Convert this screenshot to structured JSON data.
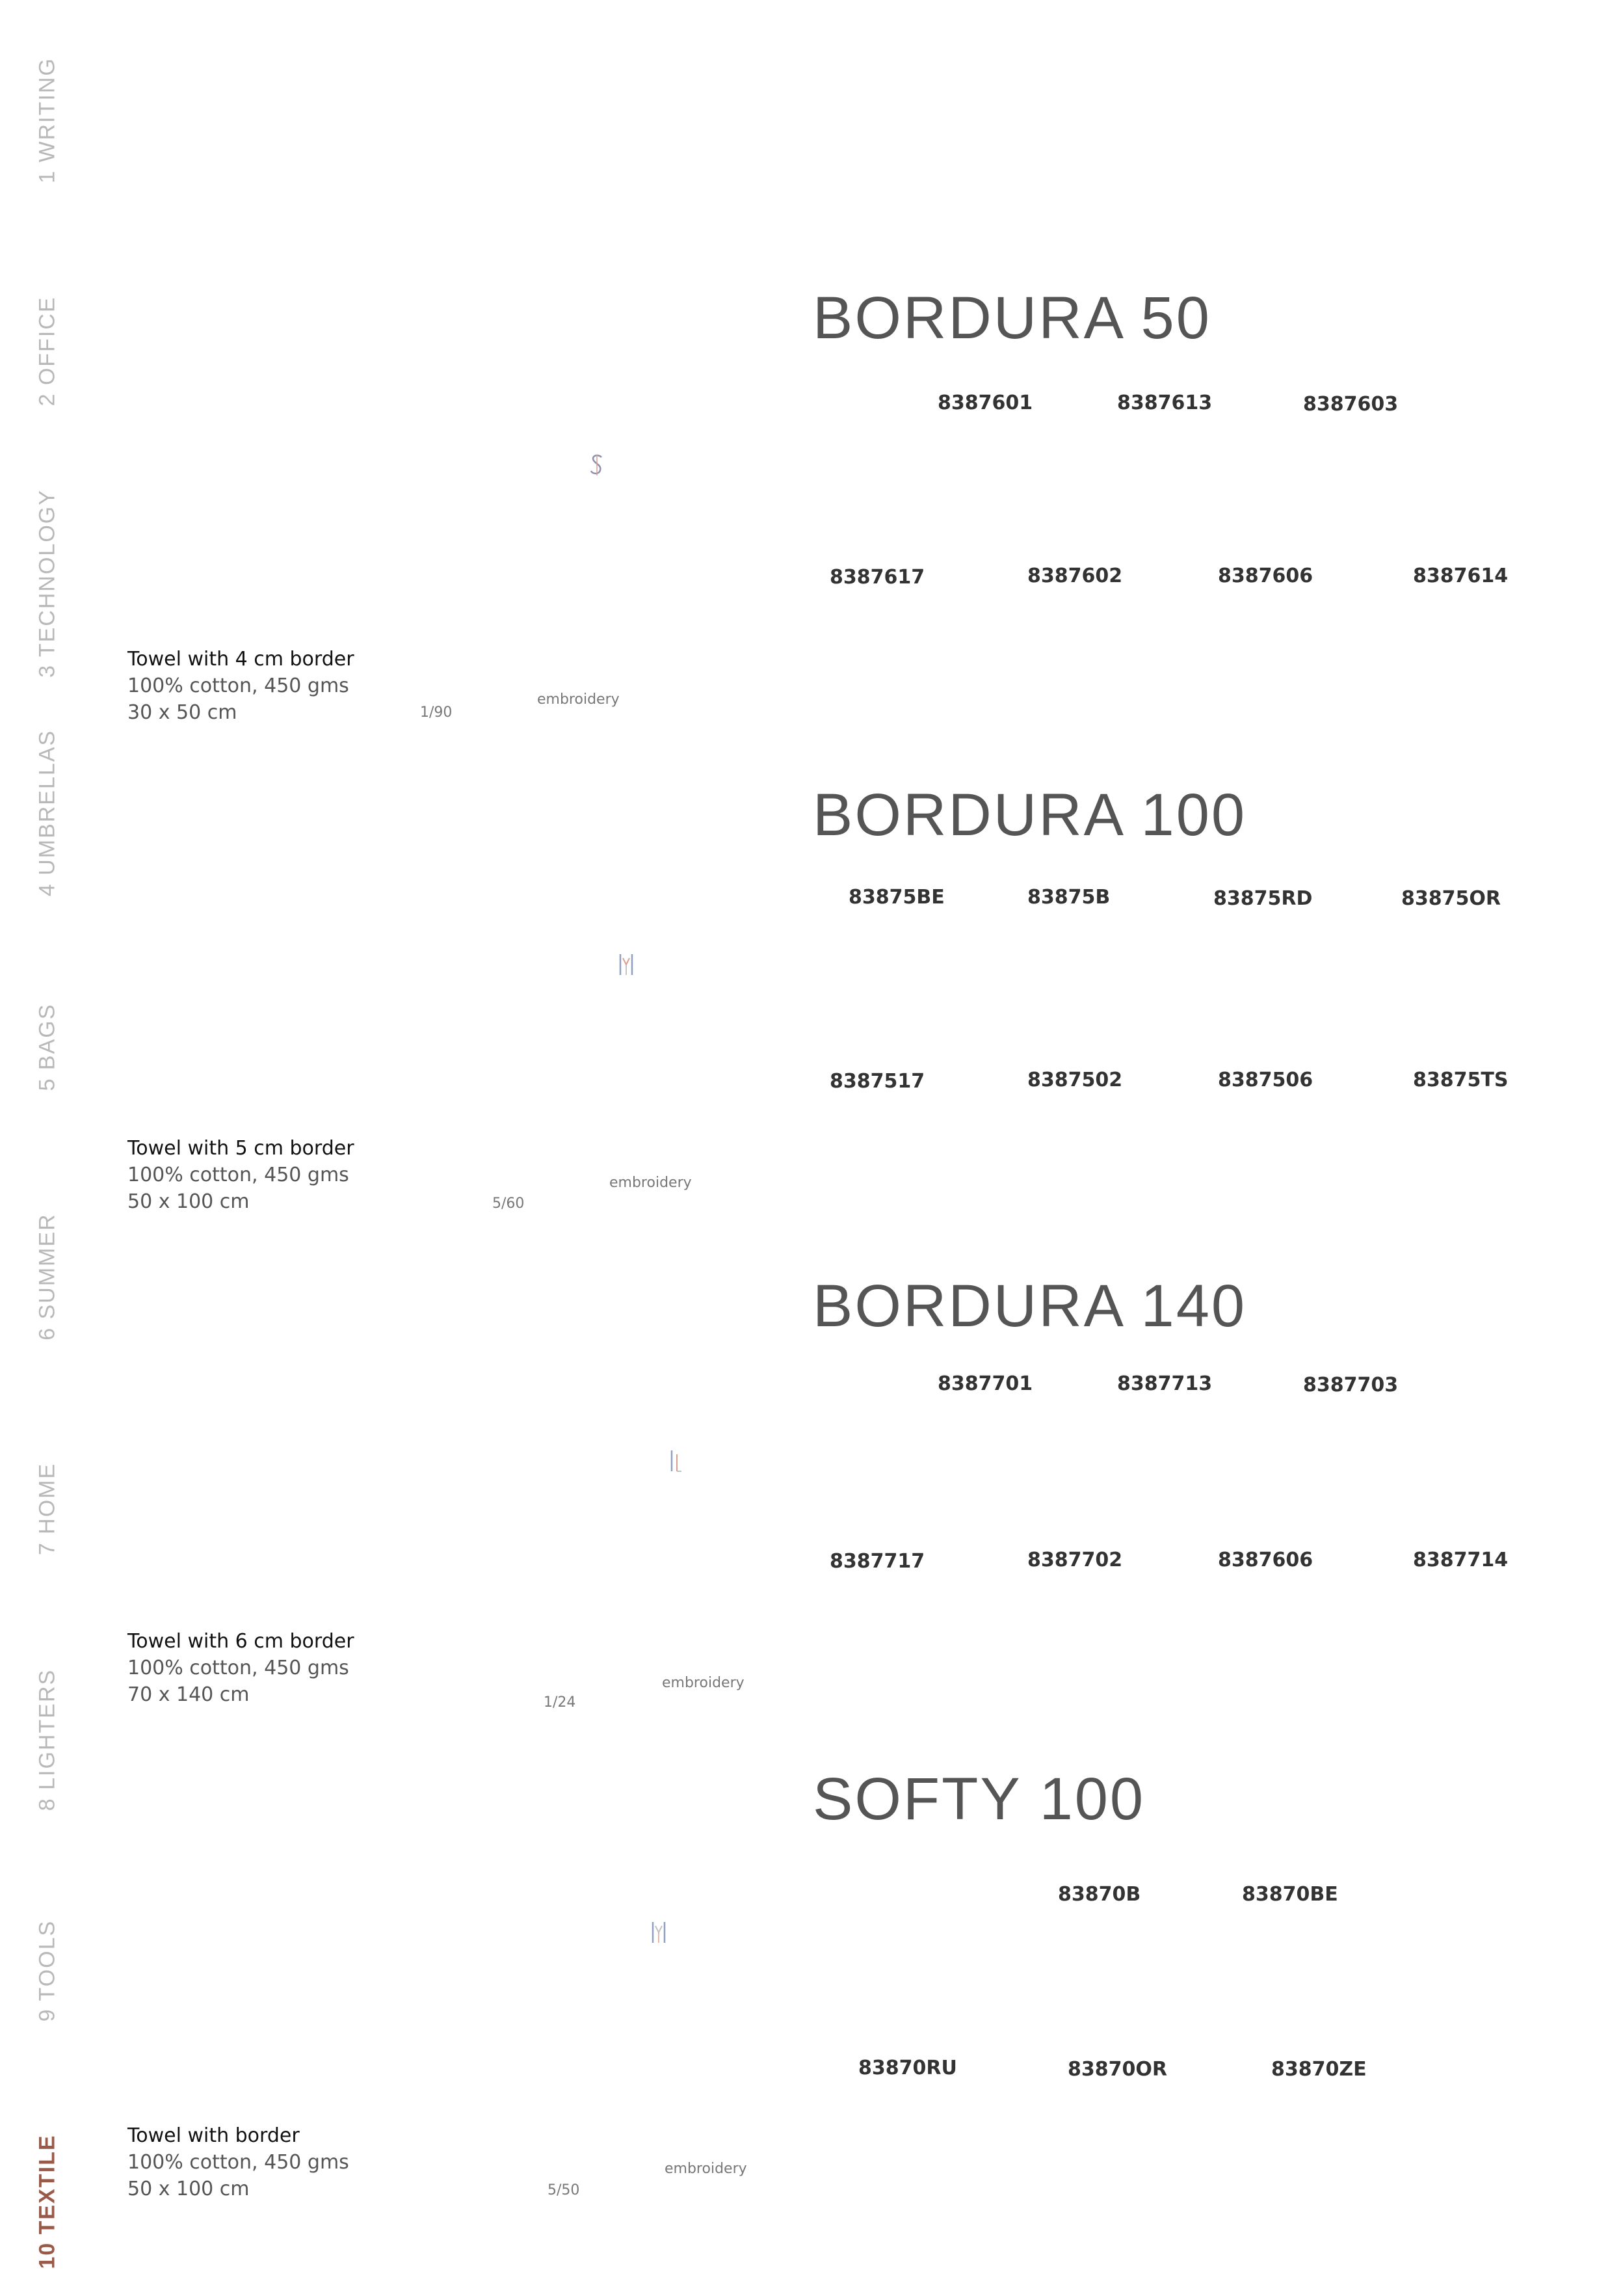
{
  "nav": [
    {
      "label": "1 WRITING",
      "active": false
    },
    {
      "label": "2 OFFICE",
      "active": false
    },
    {
      "label": "3 TECHNOLOGY",
      "active": false
    },
    {
      "label": "4 UMBRELLAS",
      "active": false
    },
    {
      "label": "5 BAGS",
      "active": false
    },
    {
      "label": "6 SUMMER",
      "active": false
    },
    {
      "label": "7 HOME",
      "active": false
    },
    {
      "label": "8 LIGHTERS",
      "active": false
    },
    {
      "label": "9 TOOLS",
      "active": false
    },
    {
      "label": "10 TEXTILE",
      "active": true
    }
  ],
  "products": [
    {
      "name": "Towel with 4 cm border",
      "material": "100% cotton, 450 gms",
      "size": "30 x 50 cm",
      "pack": "1/90",
      "decoration": "embroidery",
      "icon": "embroidery-icon"
    },
    {
      "name": "Towel with 5 cm border",
      "material": "100% cotton, 450 gms",
      "size": "50 x 100 cm",
      "pack": "5/60",
      "decoration": "embroidery",
      "icon": "embroidery-icon"
    },
    {
      "name": "Towel with 6 cm border",
      "material": "100% cotton, 450 gms",
      "size": "70 x 140 cm",
      "pack": "1/24",
      "decoration": "embroidery",
      "icon": "embroidery-icon"
    },
    {
      "name": "Towel with border",
      "material": "100% cotton, 450 gms",
      "size": "50 x 100 cm",
      "pack": "5/50",
      "decoration": "embroidery",
      "icon": "embroidery-icon"
    }
  ],
  "sections": [
    {
      "title": "BORDURA 50",
      "row1": [
        "8387601",
        "8387613",
        "8387603"
      ],
      "row2": [
        "8387617",
        "8387602",
        "8387606",
        "8387614"
      ]
    },
    {
      "title": "BORDURA 100",
      "row1": [
        "83875BE",
        "83875B",
        "83875RD",
        "83875OR"
      ],
      "row2": [
        "8387517",
        "8387502",
        "8387506",
        "83875TS"
      ]
    },
    {
      "title": "BORDURA 140",
      "row1": [
        "8387701",
        "8387713",
        "8387703"
      ],
      "row2": [
        "8387717",
        "8387702",
        "8387606",
        "8387714"
      ]
    },
    {
      "title": "SOFTY 100",
      "row1": [
        "83870B",
        "83870BE"
      ],
      "row2": [
        "83870RU",
        "83870OR",
        "83870ZE"
      ]
    }
  ],
  "colors": {
    "nav_inactive": "#b8b8b8",
    "nav_active": "#9a5a4a",
    "heading": "#555555"
  }
}
